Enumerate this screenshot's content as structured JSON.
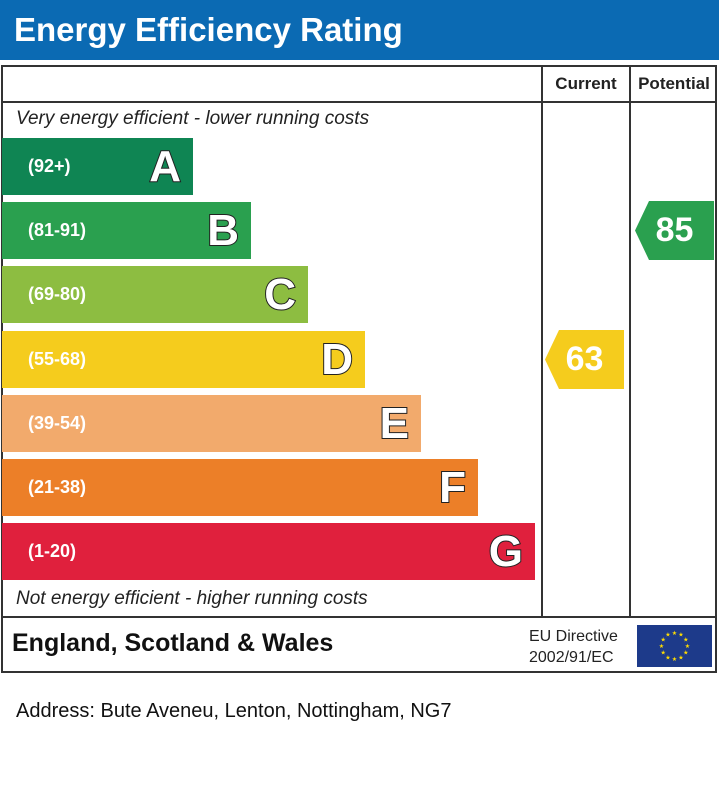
{
  "title": "Energy Efficiency Rating",
  "chart_data": {
    "type": "bar",
    "columns": [
      "Current",
      "Potential"
    ],
    "top_note": "Very energy efficient - lower running costs",
    "bottom_note": "Not energy efficient - higher running costs",
    "bands": [
      {
        "letter": "A",
        "range": "(92+)",
        "color": "#0f8553"
      },
      {
        "letter": "B",
        "range": "(81-91)",
        "color": "#2aa04f"
      },
      {
        "letter": "C",
        "range": "(69-80)",
        "color": "#8dbd41"
      },
      {
        "letter": "D",
        "range": "(55-68)",
        "color": "#f5cc1d"
      },
      {
        "letter": "E",
        "range": "(39-54)",
        "color": "#f2aa6c"
      },
      {
        "letter": "F",
        "range": "(21-38)",
        "color": "#ec7f28"
      },
      {
        "letter": "G",
        "range": "(1-20)",
        "color": "#e0203d"
      }
    ],
    "current": {
      "value": 63,
      "band": "D"
    },
    "potential": {
      "value": 85,
      "band": "B"
    }
  },
  "footer": {
    "region": "England, Scotland & Wales",
    "directive_line1": "EU Directive",
    "directive_line2": "2002/91/EC",
    "flag": "eu-flag-icon"
  },
  "address": "Address: Bute Aveneu, Lenton, Nottingham, NG7"
}
